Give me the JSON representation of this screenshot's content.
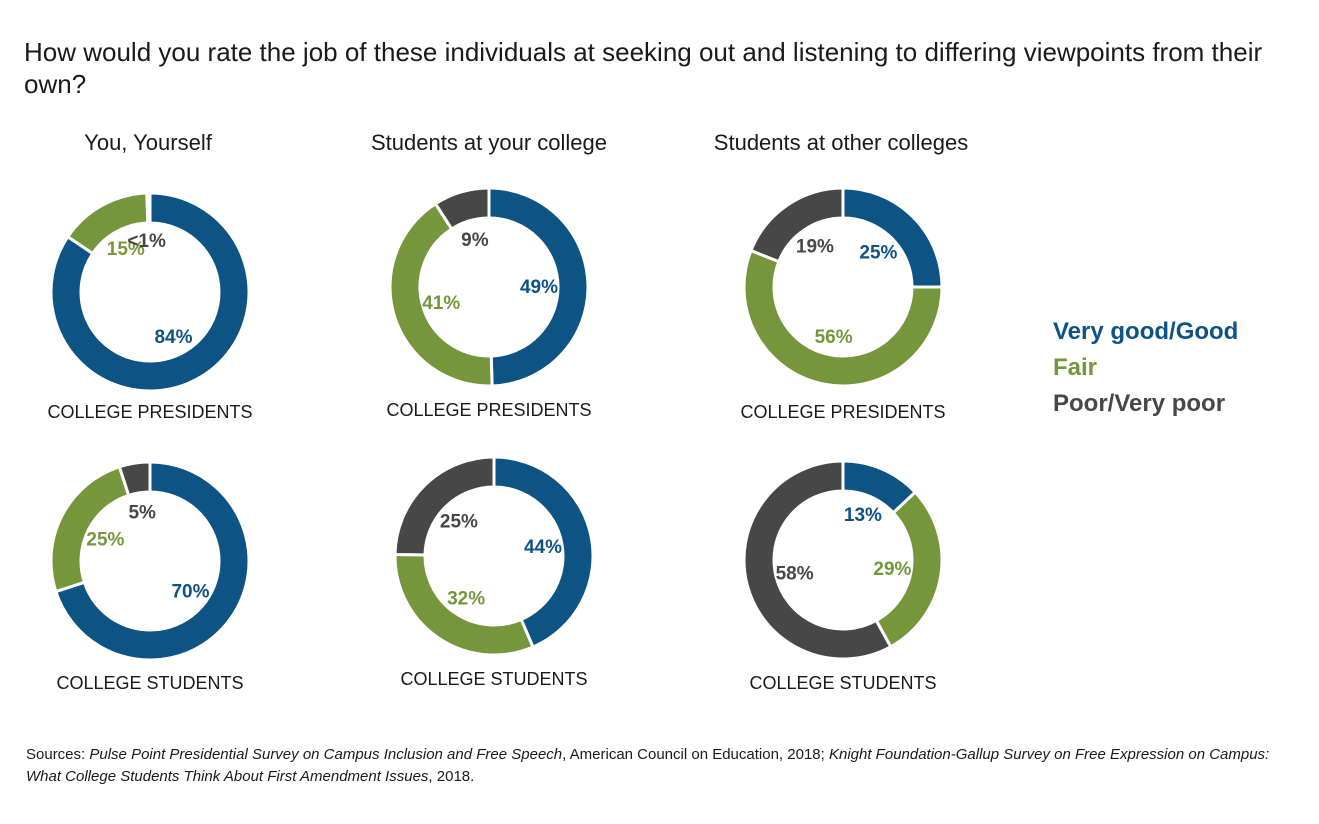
{
  "title": "How would you rate the job of these individuals at seeking out and listening to differing viewpoints from their own?",
  "columns": [
    "You, Yourself",
    "Students at your college",
    "Students at other colleges"
  ],
  "colors": {
    "very_good": "#0d5384",
    "fair": "#76963c",
    "poor": "#474747"
  },
  "legend": {
    "very_good": "Very good/Good",
    "fair": "Fair",
    "poor": "Poor/Very poor"
  },
  "chart_data": [
    {
      "type": "pie",
      "donut": true,
      "column": "You, Yourself",
      "group": "COLLEGE PRESIDENTS",
      "slices": [
        {
          "series": "Very good/Good",
          "value": 84,
          "label": "84%"
        },
        {
          "series": "Fair",
          "value": 15,
          "label": "15%"
        },
        {
          "series": "Poor/Very poor",
          "value": 0.5,
          "label": "<1%"
        }
      ]
    },
    {
      "type": "pie",
      "donut": true,
      "column": "Students at your college",
      "group": "COLLEGE PRESIDENTS",
      "slices": [
        {
          "series": "Very good/Good",
          "value": 49,
          "label": "49%"
        },
        {
          "series": "Fair",
          "value": 41,
          "label": "41%"
        },
        {
          "series": "Poor/Very poor",
          "value": 9,
          "label": "9%"
        }
      ]
    },
    {
      "type": "pie",
      "donut": true,
      "column": "Students at other colleges",
      "group": "COLLEGE PRESIDENTS",
      "slices": [
        {
          "series": "Very good/Good",
          "value": 25,
          "label": "25%"
        },
        {
          "series": "Fair",
          "value": 56,
          "label": "56%"
        },
        {
          "series": "Poor/Very poor",
          "value": 19,
          "label": "19%"
        }
      ]
    },
    {
      "type": "pie",
      "donut": true,
      "column": "You, Yourself",
      "group": "COLLEGE STUDENTS",
      "slices": [
        {
          "series": "Very good/Good",
          "value": 70,
          "label": "70%"
        },
        {
          "series": "Fair",
          "value": 25,
          "label": "25%"
        },
        {
          "series": "Poor/Very poor",
          "value": 5,
          "label": "5%"
        }
      ]
    },
    {
      "type": "pie",
      "donut": true,
      "column": "Students at your college",
      "group": "COLLEGE STUDENTS",
      "slices": [
        {
          "series": "Very good/Good",
          "value": 44,
          "label": "44%"
        },
        {
          "series": "Fair",
          "value": 32,
          "label": "32%"
        },
        {
          "series": "Poor/Very poor",
          "value": 25,
          "label": "25%"
        }
      ]
    },
    {
      "type": "pie",
      "donut": true,
      "column": "Students at other colleges",
      "group": "COLLEGE STUDENTS",
      "slices": [
        {
          "series": "Very good/Good",
          "value": 13,
          "label": "13%"
        },
        {
          "series": "Fair",
          "value": 29,
          "label": "29%"
        },
        {
          "series": "Poor/Very poor",
          "value": 58,
          "label": "58%"
        }
      ]
    }
  ],
  "source": {
    "prefix": "Sources: ",
    "title1": "Pulse Point Presidential Survey on Campus Inclusion and Free Speech",
    "mid": ", American Council on Education, 2018; ",
    "title2": "Knight Foundation-Gallup Survey on Free Expression on Campus: What College Students Think About First Amendment Issues",
    "suffix": ", 2018."
  }
}
